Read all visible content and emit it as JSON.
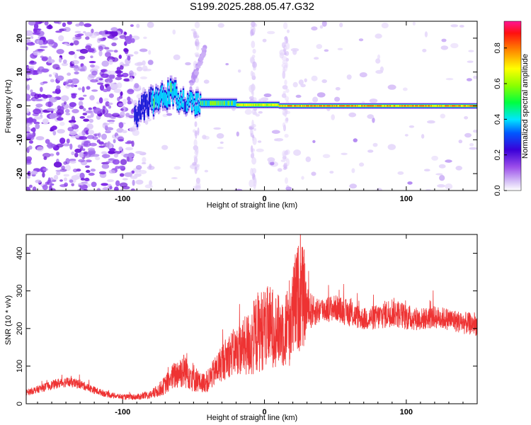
{
  "title": "S199.2025.288.05.47.G32",
  "chart_data": [
    {
      "type": "heatmap",
      "xlabel": "Height of straight line (km)",
      "ylabel": "Frequency (Hz)",
      "xlim": [
        -168,
        150
      ],
      "ylim": [
        -25,
        25
      ],
      "x_ticks": [
        "-100",
        "0",
        "100"
      ],
      "y_ticks": [
        "-20",
        "-10",
        "0",
        "10",
        "20"
      ],
      "colorbar": {
        "label": "Normalized spectral amplitude",
        "range": [
          0.0,
          0.95
        ],
        "ticks": [
          "0.0",
          "0.2",
          "0.4",
          "0.6",
          "0.8"
        ],
        "colors": [
          "#ffffff",
          "#c9a8f5",
          "#8a2be2",
          "#4b0082",
          "#0000ff",
          "#00ffff",
          "#00ff00",
          "#ffff00",
          "#ff8800",
          "#ff0000",
          "#ff1493"
        ]
      },
      "description_points": [
        {
          "x": -90,
          "freq": -2,
          "amp": 0.35
        },
        {
          "x": -70,
          "freq": 4,
          "amp": 0.45
        },
        {
          "x": -55,
          "freq": 1,
          "amp": 0.4
        },
        {
          "x": -40,
          "freq": 1,
          "amp": 0.5
        },
        {
          "x": -10,
          "freq": 0,
          "amp": 0.7
        },
        {
          "x": 20,
          "freq": 0,
          "amp": 0.85
        },
        {
          "x": 60,
          "freq": 0,
          "amp": 0.9
        },
        {
          "x": 100,
          "freq": 0,
          "amp": 0.85
        },
        {
          "x": 140,
          "freq": 0,
          "amp": 0.8
        }
      ]
    },
    {
      "type": "line",
      "xlabel": "Height of straight line (km)",
      "ylabel": "SNR (10 * v/v)",
      "xlim": [
        -168,
        150
      ],
      "ylim": [
        0,
        450
      ],
      "x_ticks": [
        "-100",
        "0",
        "100"
      ],
      "y_ticks": [
        "0",
        "100",
        "200",
        "300",
        "400"
      ],
      "series": [
        {
          "name": "SNR",
          "color": "#ee3333",
          "x": [
            -168,
            -160,
            -150,
            -140,
            -130,
            -120,
            -110,
            -100,
            -90,
            -80,
            -75,
            -70,
            -65,
            -60,
            -55,
            -50,
            -45,
            -40,
            -35,
            -30,
            -25,
            -20,
            -15,
            -10,
            -5,
            0,
            5,
            10,
            15,
            20,
            22,
            25,
            28,
            30,
            35,
            40,
            50,
            60,
            70,
            80,
            90,
            100,
            110,
            120,
            130,
            140,
            150
          ],
          "values": [
            30,
            38,
            50,
            58,
            52,
            36,
            24,
            18,
            18,
            24,
            35,
            50,
            70,
            85,
            90,
            70,
            55,
            60,
            85,
            110,
            130,
            140,
            150,
            160,
            190,
            200,
            205,
            195,
            200,
            235,
            270,
            290,
            280,
            250,
            245,
            250,
            255,
            240,
            225,
            230,
            245,
            230,
            225,
            230,
            225,
            215,
            210
          ],
          "noise": [
            8,
            10,
            12,
            14,
            12,
            10,
            8,
            7,
            8,
            12,
            18,
            25,
            35,
            45,
            50,
            40,
            25,
            30,
            40,
            50,
            60,
            65,
            75,
            95,
            110,
            110,
            110,
            95,
            110,
            130,
            140,
            150,
            130,
            60,
            40,
            35,
            35,
            35,
            30,
            35,
            40,
            35,
            30,
            30,
            30,
            30,
            30
          ]
        }
      ]
    }
  ]
}
